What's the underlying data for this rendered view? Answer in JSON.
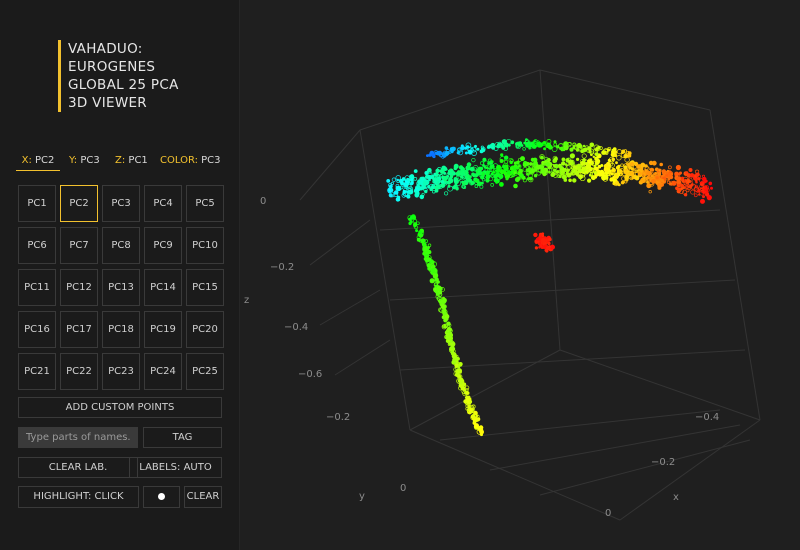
{
  "title_lines": [
    "VAHADUO:",
    "EUROGENES",
    "GLOBAL 25 PCA",
    "3D VIEWER"
  ],
  "axis_tabs": {
    "x": {
      "key": "X:",
      "value": "PC2"
    },
    "y": {
      "key": "Y:",
      "value": "PC3"
    },
    "z": {
      "key": "Z:",
      "value": "PC1"
    },
    "color": {
      "key": "COLOR:",
      "value": "PC3"
    }
  },
  "pc_buttons": [
    "PC1",
    "PC2",
    "PC3",
    "PC4",
    "PC5",
    "PC6",
    "PC7",
    "PC8",
    "PC9",
    "PC10",
    "PC11",
    "PC12",
    "PC13",
    "PC14",
    "PC15",
    "PC16",
    "PC17",
    "PC18",
    "PC19",
    "PC20",
    "PC21",
    "PC22",
    "PC23",
    "PC24",
    "PC25"
  ],
  "selected_pc": "PC2",
  "buttons": {
    "add_custom": "ADD CUSTOM POINTS",
    "tag": "TAG",
    "clear_lab": "CLEAR LAB.",
    "labels": "LABELS: AUTO",
    "highlight": "HIGHLIGHT: CLICK",
    "clear": "CLEAR"
  },
  "search": {
    "placeholder": "Type parts of names.",
    "value": ""
  },
  "plot": {
    "axis_titles": {
      "x": "x",
      "y": "y",
      "z": "z"
    },
    "z_ticks": [
      "0",
      "−0.2",
      "−0.4",
      "−0.6"
    ],
    "y_ticks": [
      "−0.2",
      "0"
    ],
    "x_ticks": [
      "−0.4",
      "−0.2",
      "0"
    ]
  },
  "colors": {
    "accent": "#f2c12e",
    "background": "#1f1f1f",
    "sidebar": "#1b1b1b"
  }
}
